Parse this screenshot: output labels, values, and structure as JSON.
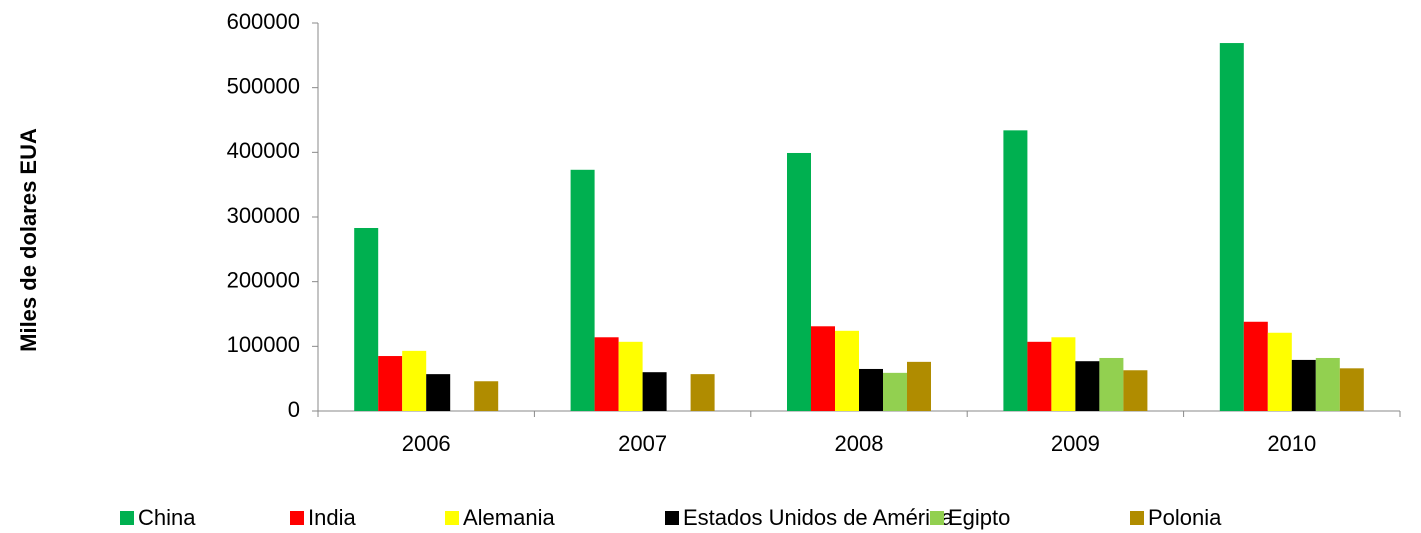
{
  "chart_data": {
    "type": "bar",
    "y_label": "Miles de dolares EUA",
    "categories": [
      "2006",
      "2007",
      "2008",
      "2009",
      "2010"
    ],
    "series": [
      {
        "name": "China",
        "color": "#00b050",
        "values": [
          283000,
          373000,
          399000,
          434000,
          569000
        ]
      },
      {
        "name": "India",
        "color": "#ff0000",
        "values": [
          85000,
          114000,
          131000,
          107000,
          138000
        ]
      },
      {
        "name": "Alemania",
        "color": "#ffff00",
        "values": [
          93000,
          107000,
          124000,
          114000,
          121000
        ]
      },
      {
        "name": "Estados Unidos de América",
        "color": "#000000",
        "values": [
          57000,
          60000,
          65000,
          77000,
          79000
        ]
      },
      {
        "name": "Egipto",
        "color": "#92d050",
        "values": [
          null,
          null,
          59000,
          82000,
          82000
        ]
      },
      {
        "name": "Polonia",
        "color": "#b08c00",
        "values": [
          46000,
          57000,
          76000,
          63000,
          66000
        ]
      }
    ],
    "ylim": [
      0,
      600000
    ],
    "yticks": [
      0,
      100000,
      200000,
      300000,
      400000,
      500000,
      600000
    ],
    "legend": "bottom"
  }
}
